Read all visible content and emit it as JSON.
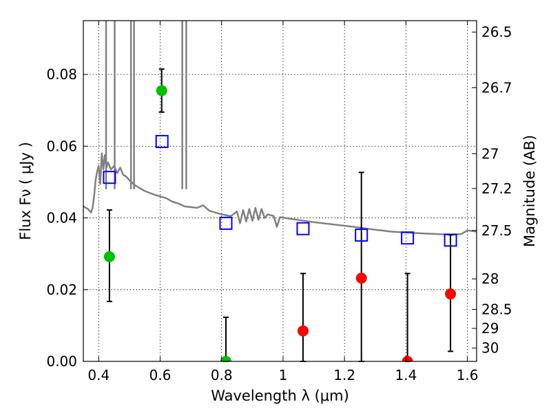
{
  "chart_data": {
    "type": "scatter",
    "xlabel": "Wavelength  λ (μm)",
    "ylabel": "Flux  Fν  ( μJy )",
    "ylabel_right": "Magnitude (AB)",
    "xlim": [
      0.35,
      1.63
    ],
    "ylim": [
      0.0,
      0.095
    ],
    "x_ticks": [
      0.4,
      0.6,
      0.8,
      1.0,
      1.2,
      1.4,
      1.6
    ],
    "x_tick_labels": [
      "0.4",
      "0.6",
      "0.8",
      "1",
      "1.2",
      "1.4",
      "1.6"
    ],
    "y_ticks": [
      0.0,
      0.02,
      0.04,
      0.06,
      0.08
    ],
    "y_tick_labels": [
      "0.00",
      "0.02",
      "0.04",
      "0.06",
      "0.08"
    ],
    "right_ticks": [
      {
        "label": "26.5",
        "flux": 0.0918
      },
      {
        "label": "26.7",
        "flux": 0.0763
      },
      {
        "label": "27",
        "flux": 0.0579
      },
      {
        "label": "27.2",
        "flux": 0.0482
      },
      {
        "label": "27.5",
        "flux": 0.0365
      },
      {
        "label": "28",
        "flux": 0.023
      },
      {
        "label": "28.5",
        "flux": 0.0145
      },
      {
        "label": "29",
        "flux": 0.0092
      },
      {
        "label": "30",
        "flux": 0.0037
      }
    ],
    "grid": true,
    "series": [
      {
        "marker": "circle-green",
        "color": "#00c000",
        "points": [
          {
            "x": 0.435,
            "y": 0.0292,
            "err_lo": 0.0125,
            "err_hi": 0.013
          },
          {
            "x": 0.605,
            "y": 0.0755,
            "err_lo": 0.006,
            "err_hi": 0.006
          },
          {
            "x": 0.814,
            "y": 0.0,
            "err_lo": 0.0,
            "err_hi": 0.0123
          }
        ]
      },
      {
        "marker": "circle-red",
        "color": "#ff0000",
        "points": [
          {
            "x": 1.065,
            "y": 0.0085,
            "err_lo": 0.0085,
            "err_hi": 0.016
          },
          {
            "x": 1.255,
            "y": 0.0232,
            "err_lo": 0.0232,
            "err_hi": 0.0295
          },
          {
            "x": 1.405,
            "y": 0.0,
            "err_lo": 0.0,
            "err_hi": 0.0245
          },
          {
            "x": 1.545,
            "y": 0.0188,
            "err_lo": 0.016,
            "err_hi": 0.0165
          }
        ]
      },
      {
        "marker": "square-open-blue",
        "color": "#0000ff",
        "points": [
          {
            "x": 0.435,
            "y": 0.0513
          },
          {
            "x": 0.606,
            "y": 0.0613
          },
          {
            "x": 0.814,
            "y": 0.0385
          },
          {
            "x": 1.065,
            "y": 0.037
          },
          {
            "x": 1.255,
            "y": 0.0352
          },
          {
            "x": 1.405,
            "y": 0.0344
          },
          {
            "x": 1.545,
            "y": 0.0338
          }
        ]
      },
      {
        "type": "line",
        "color": "#808080",
        "points": [
          [
            0.35,
            0.0432
          ],
          [
            0.365,
            0.0425
          ],
          [
            0.375,
            0.0415
          ],
          [
            0.38,
            0.0428
          ],
          [
            0.385,
            0.046
          ],
          [
            0.39,
            0.0505
          ],
          [
            0.395,
            0.053
          ],
          [
            0.4,
            0.0545
          ],
          [
            0.405,
            0.0495
          ],
          [
            0.41,
            0.058
          ],
          [
            0.415,
            0.0535
          ],
          [
            0.42,
            0.0575
          ],
          [
            0.425,
            0.054
          ],
          [
            0.43,
            0.0555
          ],
          [
            0.44,
            0.0535
          ],
          [
            0.45,
            0.0545
          ],
          [
            0.46,
            0.0525
          ],
          [
            0.47,
            0.054
          ],
          [
            0.48,
            0.052
          ],
          [
            0.49,
            0.0515
          ],
          [
            0.5,
            0.0505
          ],
          [
            0.52,
            0.049
          ],
          [
            0.55,
            0.0475
          ],
          [
            0.58,
            0.0465
          ],
          [
            0.6,
            0.046
          ],
          [
            0.62,
            0.0455
          ],
          [
            0.64,
            0.0445
          ],
          [
            0.66,
            0.044
          ],
          [
            0.68,
            0.0432
          ],
          [
            0.7,
            0.043
          ],
          [
            0.72,
            0.0428
          ],
          [
            0.74,
            0.0435
          ],
          [
            0.76,
            0.042
          ],
          [
            0.78,
            0.0415
          ],
          [
            0.8,
            0.041
          ],
          [
            0.83,
            0.0405
          ],
          [
            0.85,
            0.0418
          ],
          [
            0.86,
            0.0385
          ],
          [
            0.87,
            0.0422
          ],
          [
            0.88,
            0.039
          ],
          [
            0.89,
            0.0425
          ],
          [
            0.9,
            0.0392
          ],
          [
            0.91,
            0.0428
          ],
          [
            0.92,
            0.0395
          ],
          [
            0.93,
            0.0425
          ],
          [
            0.94,
            0.04
          ],
          [
            0.95,
            0.041
          ],
          [
            0.97,
            0.0405
          ],
          [
            0.98,
            0.0375
          ],
          [
            0.99,
            0.0402
          ],
          [
            1.02,
            0.0398
          ],
          [
            1.06,
            0.0393
          ],
          [
            1.1,
            0.0388
          ],
          [
            1.15,
            0.0383
          ],
          [
            1.2,
            0.0378
          ],
          [
            1.25,
            0.0373
          ],
          [
            1.3,
            0.0367
          ],
          [
            1.35,
            0.0362
          ],
          [
            1.4,
            0.0359
          ],
          [
            1.45,
            0.0357
          ],
          [
            1.5,
            0.0355
          ],
          [
            1.55,
            0.0353
          ],
          [
            1.58,
            0.0355
          ],
          [
            1.6,
            0.0365
          ],
          [
            1.63,
            0.0362
          ]
        ],
        "spikes": [
          {
            "x": 0.424,
            "y": 0.095
          },
          {
            "x": 0.452,
            "y": 0.095
          },
          {
            "x": 0.505,
            "y": 0.095
          },
          {
            "x": 0.515,
            "y": 0.095
          },
          {
            "x": 0.672,
            "y": 0.095
          },
          {
            "x": 0.685,
            "y": 0.095
          }
        ]
      }
    ]
  }
}
